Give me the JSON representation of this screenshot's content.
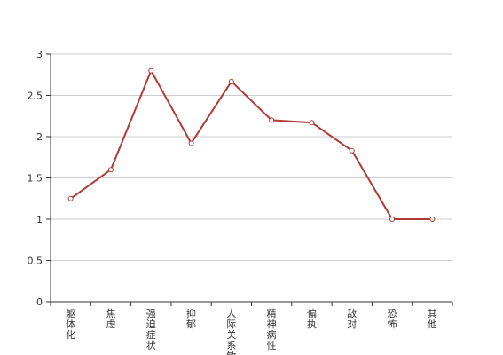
{
  "chart_data": {
    "type": "line",
    "title": "",
    "xlabel": "",
    "ylabel": "",
    "categories": [
      "躯体化",
      "焦虑",
      "强迫症状",
      "抑郁",
      "人际关系敏感",
      "精神病性",
      "偏执",
      "敌对",
      "恐怖",
      "其他"
    ],
    "series": [
      {
        "values": [
          1.25,
          1.6,
          2.8,
          1.92,
          2.67,
          2.2,
          2.17,
          1.83,
          1.0,
          1.0
        ]
      }
    ],
    "ylim": [
      0,
      3
    ],
    "yticks": [
      0,
      0.5,
      1,
      1.5,
      2,
      2.5,
      3
    ],
    "ytick_labels": [
      "0",
      "0.5",
      "1",
      "1.5",
      "2",
      "2.5",
      "3"
    ],
    "grid": true,
    "legend": "none",
    "colors": {
      "line": "#b03a36",
      "marker_fill": "#ffffff",
      "grid": "#cccccc",
      "axis": "#333333"
    }
  }
}
